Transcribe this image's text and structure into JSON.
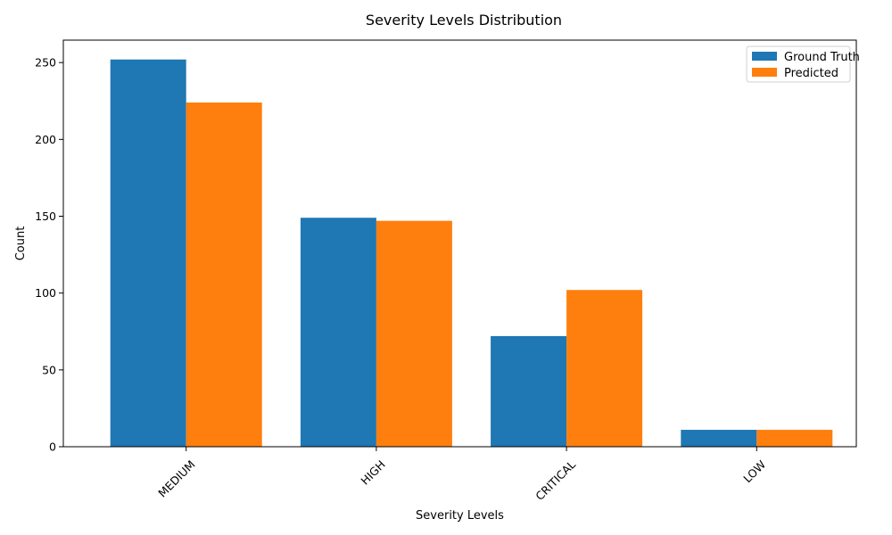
{
  "chart_data": {
    "type": "bar",
    "title": "Severity Levels Distribution",
    "xlabel": "Severity Levels",
    "ylabel": "Count",
    "categories": [
      "MEDIUM",
      "HIGH",
      "CRITICAL",
      "LOW"
    ],
    "series": [
      {
        "name": "Ground Truth",
        "color": "#1f77b4",
        "values": [
          252,
          149,
          72,
          11
        ]
      },
      {
        "name": "Predicted",
        "color": "#ff7f0e",
        "values": [
          224,
          147,
          102,
          11
        ]
      }
    ],
    "ylim": [
      0,
      264.6
    ],
    "yticks": [
      0,
      50,
      100,
      150,
      200,
      250
    ],
    "xtick_rotation": 45,
    "legend_position": "top-right",
    "grid": false
  }
}
